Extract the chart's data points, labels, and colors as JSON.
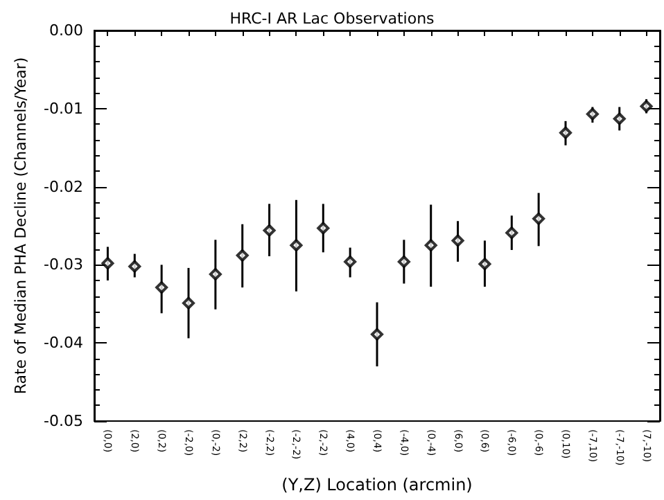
{
  "chart_data": {
    "type": "scatter",
    "title": "HRC-I AR Lac Observations",
    "xlabel": "(Y,Z) Location (arcmin)",
    "ylabel": "Rate of Median PHA Decline (Channels/Year)",
    "categories": [
      "(0,0)",
      "(2,0)",
      "(0,2)",
      "(-2,0)",
      "(0,-2)",
      "(2,2)",
      "(-2,2)",
      "(-2,-2)",
      "(2,-2)",
      "(4,0)",
      "(0,4)",
      "(-4,0)",
      "(0,-4)",
      "(6,0)",
      "(0,6)",
      "(-6,0)",
      "(0,-6)",
      "(0,10)",
      "(-7,10)",
      "(-7,-10)",
      "(7,-10)"
    ],
    "series": [
      {
        "color": "#000000",
        "values": [
          -0.0298,
          -0.0302,
          -0.0329,
          -0.0349,
          -0.0312,
          -0.0288,
          -0.0256,
          -0.0275,
          -0.0253,
          -0.0296,
          -0.0389,
          -0.0296,
          -0.0275,
          -0.0269,
          -0.0299,
          -0.0259,
          -0.0241,
          -0.0131,
          -0.0107,
          -0.0113,
          -0.0097
        ],
        "errors": [
          [
            -0.032,
            -0.0277
          ],
          [
            -0.0316,
            -0.0286
          ],
          [
            -0.0362,
            -0.03
          ],
          [
            -0.0394,
            -0.0304
          ],
          [
            -0.0357,
            -0.0268
          ],
          [
            -0.0329,
            -0.0248
          ],
          [
            -0.0289,
            -0.0222
          ],
          [
            -0.0334,
            -0.0217
          ],
          [
            -0.0284,
            -0.0222
          ],
          [
            -0.0316,
            -0.0278
          ],
          [
            -0.043,
            -0.0348
          ],
          [
            -0.0324,
            -0.0268
          ],
          [
            -0.0328,
            -0.0223
          ],
          [
            -0.0296,
            -0.0244
          ],
          [
            -0.0328,
            -0.0269
          ],
          [
            -0.0281,
            -0.0237
          ],
          [
            -0.0276,
            -0.0208
          ],
          [
            -0.0147,
            -0.0116
          ],
          [
            -0.0118,
            -0.0098
          ],
          [
            -0.0128,
            -0.0098
          ],
          [
            -0.0106,
            -0.0088
          ]
        ]
      }
    ],
    "ylim": [
      -0.05,
      0
    ],
    "yticks": [
      -0.05,
      -0.04,
      -0.03,
      -0.02,
      -0.01,
      {
        "value": 0,
        "label": "0.00"
      }
    ],
    "marker": "diamond",
    "grid": false
  }
}
